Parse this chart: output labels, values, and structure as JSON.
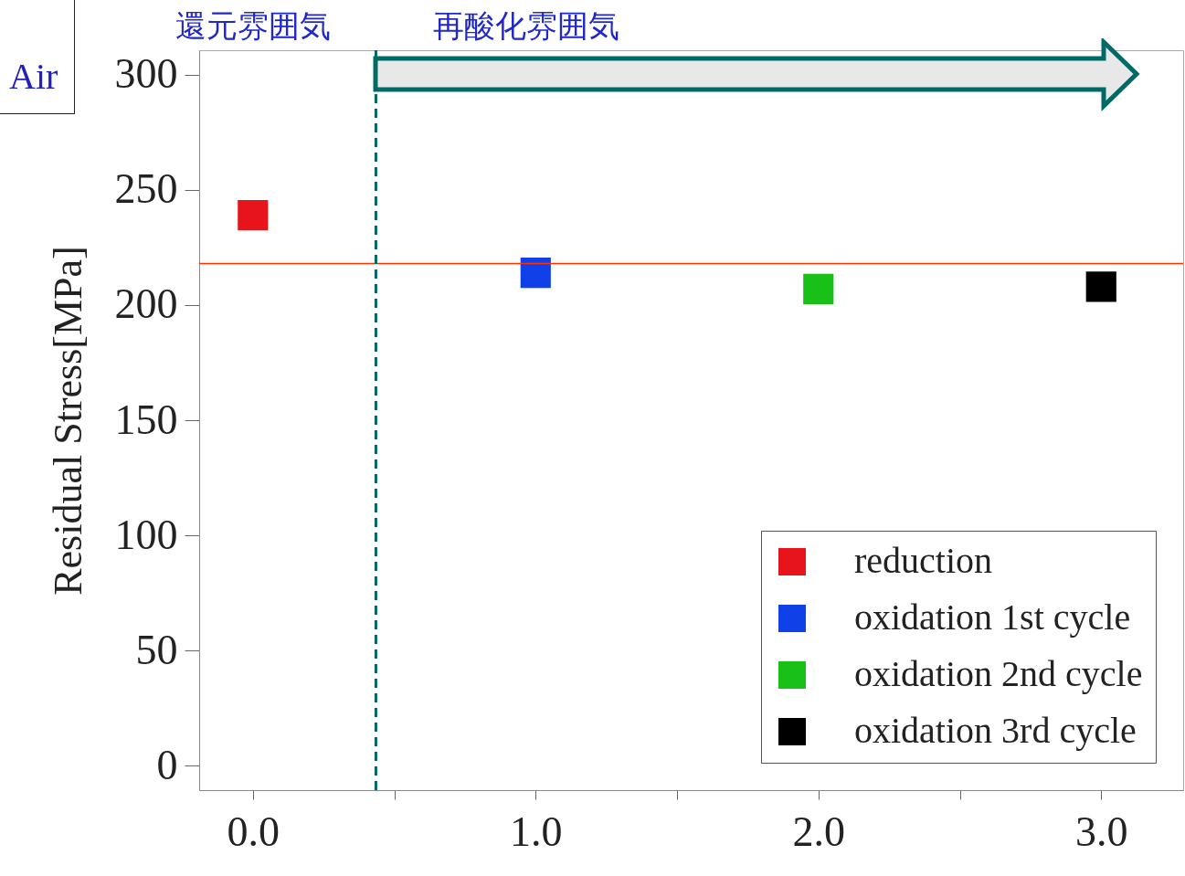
{
  "chart_data": {
    "type": "scatter",
    "ylabel": "Residual Stress[MPa]",
    "xlim": [
      -0.19,
      3.29
    ],
    "ylim": [
      -10.7,
      310.7
    ],
    "xticks": [
      {
        "value": 0,
        "label": "0.0"
      },
      {
        "value": 0.5,
        "label": null
      },
      {
        "value": 1,
        "label": "1.0"
      },
      {
        "value": 1.5,
        "label": null
      },
      {
        "value": 2,
        "label": "2.0"
      },
      {
        "value": 2.5,
        "label": null
      },
      {
        "value": 3,
        "label": "3.0"
      }
    ],
    "yticks": [
      0,
      50,
      100,
      150,
      200,
      250,
      300
    ],
    "marker": "square",
    "grid": false,
    "legend": "bottom right",
    "series": [
      {
        "name": "reduction",
        "color": "#e8141c",
        "x": [
          0
        ],
        "values": [
          239
        ]
      },
      {
        "name": "oxidation 1st cycle",
        "color": "#1040e8",
        "x": [
          1
        ],
        "values": [
          214
        ]
      },
      {
        "name": "oxidation 2nd cycle",
        "color": "#18c018",
        "x": [
          2
        ],
        "values": [
          207
        ]
      },
      {
        "name": "oxidation 3rd cycle",
        "color": "#000000",
        "x": [
          3
        ],
        "values": [
          208
        ]
      }
    ],
    "ref_lines": [
      {
        "axis": "y",
        "value": 218,
        "color": "#ff3300",
        "line_style": "solid"
      },
      {
        "axis": "x",
        "value": 0.435,
        "color": "#006666",
        "line_style": "dashed"
      }
    ],
    "annotations": [
      "Air",
      "還元雰囲気",
      "再酸化雰囲気"
    ]
  }
}
